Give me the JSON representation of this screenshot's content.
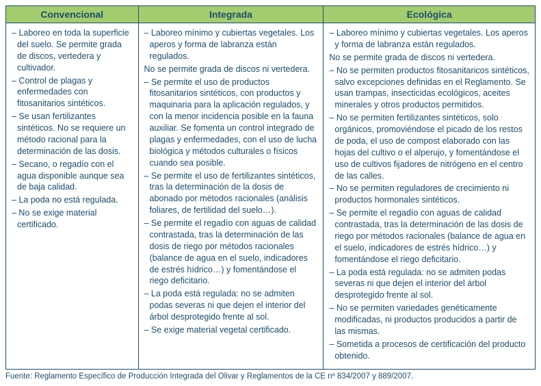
{
  "table": {
    "headers": [
      "Convencional",
      "Integrada",
      "Ecológica"
    ],
    "col_widths": [
      "25%",
      "35%",
      "40%"
    ],
    "columns": [
      {
        "items": [
          "– Laboreo en toda la superficie del suelo. Se permite grada de discos, vertedera y cultivador.",
          "– Control de plagas y enfermedades con fitosanitarios sintéticos.",
          "– Se usan fertilizantes sintéticos. No se requiere un método racional para la determinación de las dosis.",
          "– Secano, o regadío con el agua disponible aunque sea de baja calidad.",
          "– La poda no está regulada.",
          "– No se exige material certificado."
        ]
      },
      {
        "items": [
          "– Laboreo mínimo y cubiertas vegetales. Los aperos y forma de labranza están regulados.",
          "No se permite grada de discos ni vertedera.",
          "– Se permite el uso de productos fitosanitarios sintéticos, con productos y maquinaria para la aplicación regulados, y con la menor incidencia posible en la fauna auxiliar. Se fomenta un control integrado de plagas y enfermedades, con el uso de lucha biológica y métodos culturales o físicos cuando sea posible.",
          "– Se permite el uso de fertilizantes sintéticos, tras la determinación de la dosis de abonado por métodos racionales (análisis foliares, de fertilidad del suelo…).",
          "– Se permite el regadío con aguas de calidad contrastada, tras la determinación de las dosis de riego por métodos racionales (balance de agua en el suelo, indicadores de estrés hídrico…) y fomentándose el riego deficitario.",
          "– La poda está regulada: no se admiten podas severas ni que dejen el interior del árbol desprotegido frente al sol.",
          "– Se exige material vegetal certificado."
        ]
      },
      {
        "items": [
          "– Laboreo mínimo y cubiertas vegetales. Los aperos y forma de labranza están regulados.",
          "No se permite grada de discos ni vertedera.",
          "– No se permiten productos fitosanitaricos sintéticos, salvo excepciones definidas en el Reglamento. Se usan trampas, insecticidas ecológicos, aceites minerales y otros productos permitidos.",
          "– No se permiten fertilizantes sintéticos, solo orgánicos, promoviéndose el picado de los restos de poda, el uso de compost elaborado con las hojas del cultivo o el alperujo, y fomentándose el uso de cultivos fijadores de nitrógeno en el centro de las calles.",
          "– No se permiten reguladores de crecimiento ni productos hormonales sintéticos.",
          "– Se permite el regadío con aguas de calidad contrastada, tras la determinación de las dosis de riego por métodos racionales (balance de agua en el suelo, indicadores de estrés hídrico…) y fomentándose el riego deficitario.",
          "– La poda está regulada: no se admiten podas severas ni que dejen el interior del árbol desprotegido frente al sol.",
          "– No se permiten variedades genéticamente modificadas, ni productos producidos a partir de las mismas.",
          "– Sometida a procesos de certificación del producto obtenido."
        ]
      }
    ]
  },
  "source": "Fuente: Reglamento Específico de Producción Integrada del Olivar y Reglamentos de la CE nº 834/2007 y 889/2007.",
  "style": {
    "header_bg": "#a3cd6e",
    "border_color": "#1a4d6f",
    "text_color": "#1a4d6f"
  }
}
